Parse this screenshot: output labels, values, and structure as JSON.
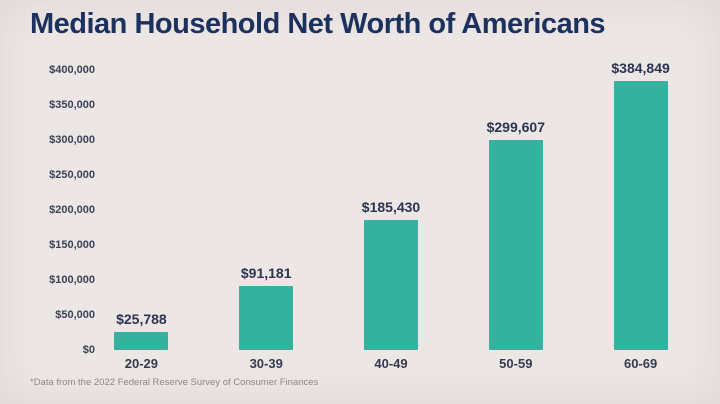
{
  "chart_data": {
    "type": "bar",
    "title": "Median Household Net Worth of Americans",
    "categories": [
      "20-29",
      "30-39",
      "40-49",
      "50-59",
      "60-69"
    ],
    "values": [
      25788,
      91181,
      185430,
      299607,
      384849
    ],
    "value_labels": [
      "$25,788",
      "$91,181",
      "$185,430",
      "$299,607",
      "$384,849"
    ],
    "xlabel": "",
    "ylabel": "",
    "ylim": [
      0,
      400000
    ],
    "ytick_values": [
      0,
      50000,
      100000,
      150000,
      200000,
      250000,
      300000,
      350000,
      400000
    ],
    "ytick_labels": [
      "$0",
      "$50,000",
      "$100,000",
      "$150,000",
      "$200,000",
      "$250,000",
      "$300,000",
      "$350,000",
      "$400,000"
    ],
    "grid": false,
    "legend": null,
    "footnote": "*Data from the 2022 Federal Reserve Survey of Consumer Finances",
    "colors": {
      "bar": "#35B1A0",
      "title": "#1D315E",
      "value_label": "#2B3450",
      "tick_label": "#3A4257",
      "footnote": "#8D8786",
      "background": "#ECE6E5"
    }
  }
}
